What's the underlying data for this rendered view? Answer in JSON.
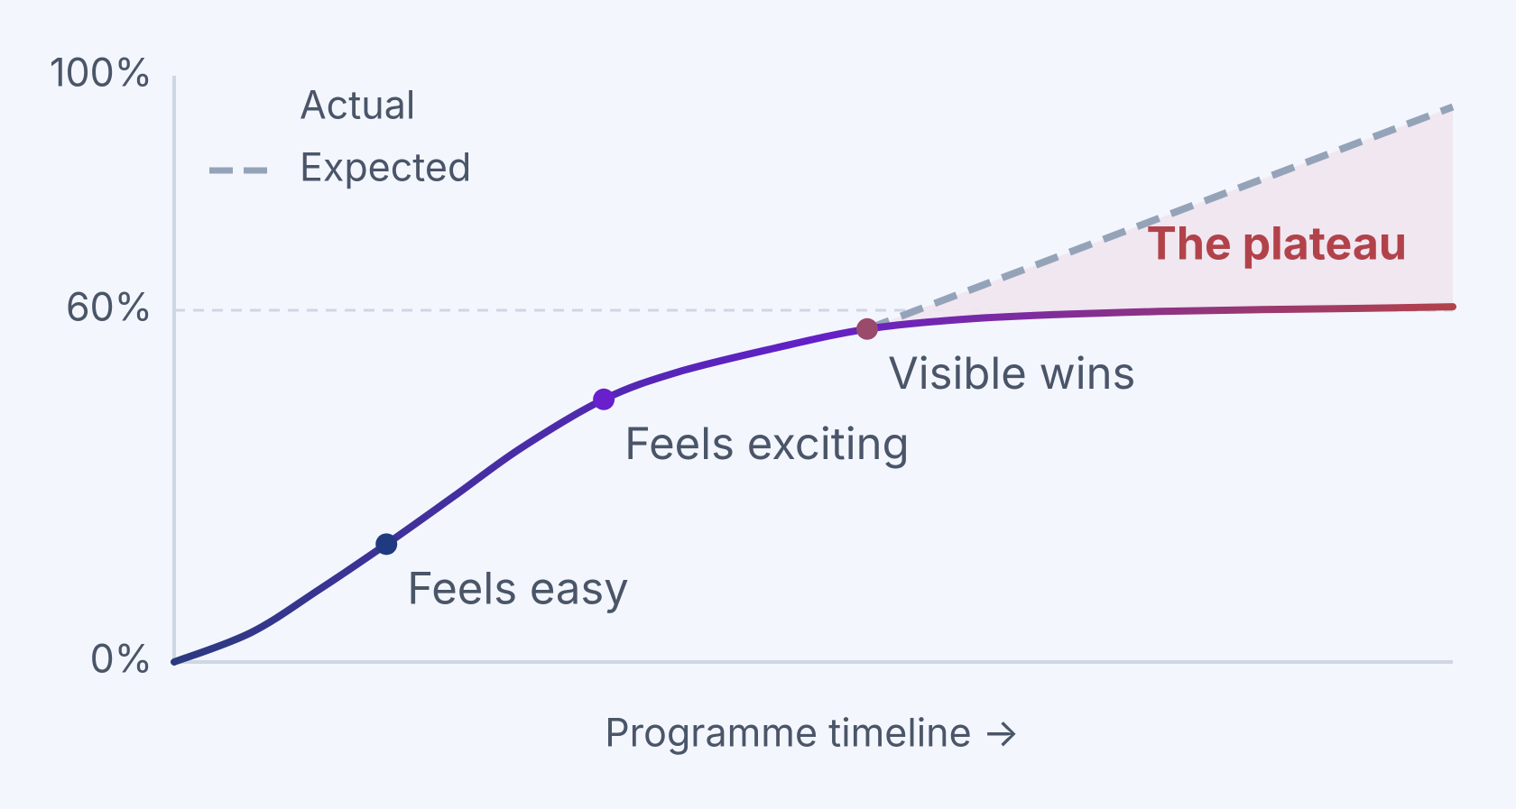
{
  "chart_data": {
    "type": "line",
    "x_label": "Programme timeline →",
    "xlim": [
      0,
      100
    ],
    "ylim": [
      0,
      100
    ],
    "yticks": [
      {
        "value": 0,
        "label": "0%"
      },
      {
        "value": 60,
        "label": "60%"
      },
      {
        "value": 100,
        "label": "100%"
      }
    ],
    "series": [
      {
        "name": "Actual",
        "gradient": [
          "#2b3a80",
          "#6320c8",
          "#b2424a"
        ],
        "x": [
          0,
          6,
          11.3,
          16.6,
          21.9,
          27.2,
          33.6,
          39.3,
          46.9,
          54.2,
          62,
          69.5,
          77.1,
          84.7,
          92.3,
          100
        ],
        "values": [
          0,
          5,
          12.3,
          20.1,
          28.3,
          36.6,
          44.8,
          49.4,
          53.5,
          56.8,
          58.5,
          59.3,
          59.8,
          60.1,
          60.3,
          60.6
        ]
      },
      {
        "name": "Expected",
        "color": "#95a3b8",
        "dashed": true,
        "x": [
          54.2,
          100
        ],
        "values": [
          56.8,
          94.7
        ]
      }
    ],
    "annotations": [
      {
        "text": "Feels easy",
        "x": 16.6,
        "y": 20.1,
        "color": "#1f3a80"
      },
      {
        "text": "Feels exciting",
        "x": 33.6,
        "y": 44.8,
        "color": "#6a1fcc"
      },
      {
        "text": "Visible wins",
        "x": 54.2,
        "y": 56.8,
        "color": "#9a4a6a"
      }
    ],
    "plateau_label": {
      "text": "The plateau",
      "x": 96.4,
      "y": 70.8,
      "color": "#b2424a"
    }
  }
}
